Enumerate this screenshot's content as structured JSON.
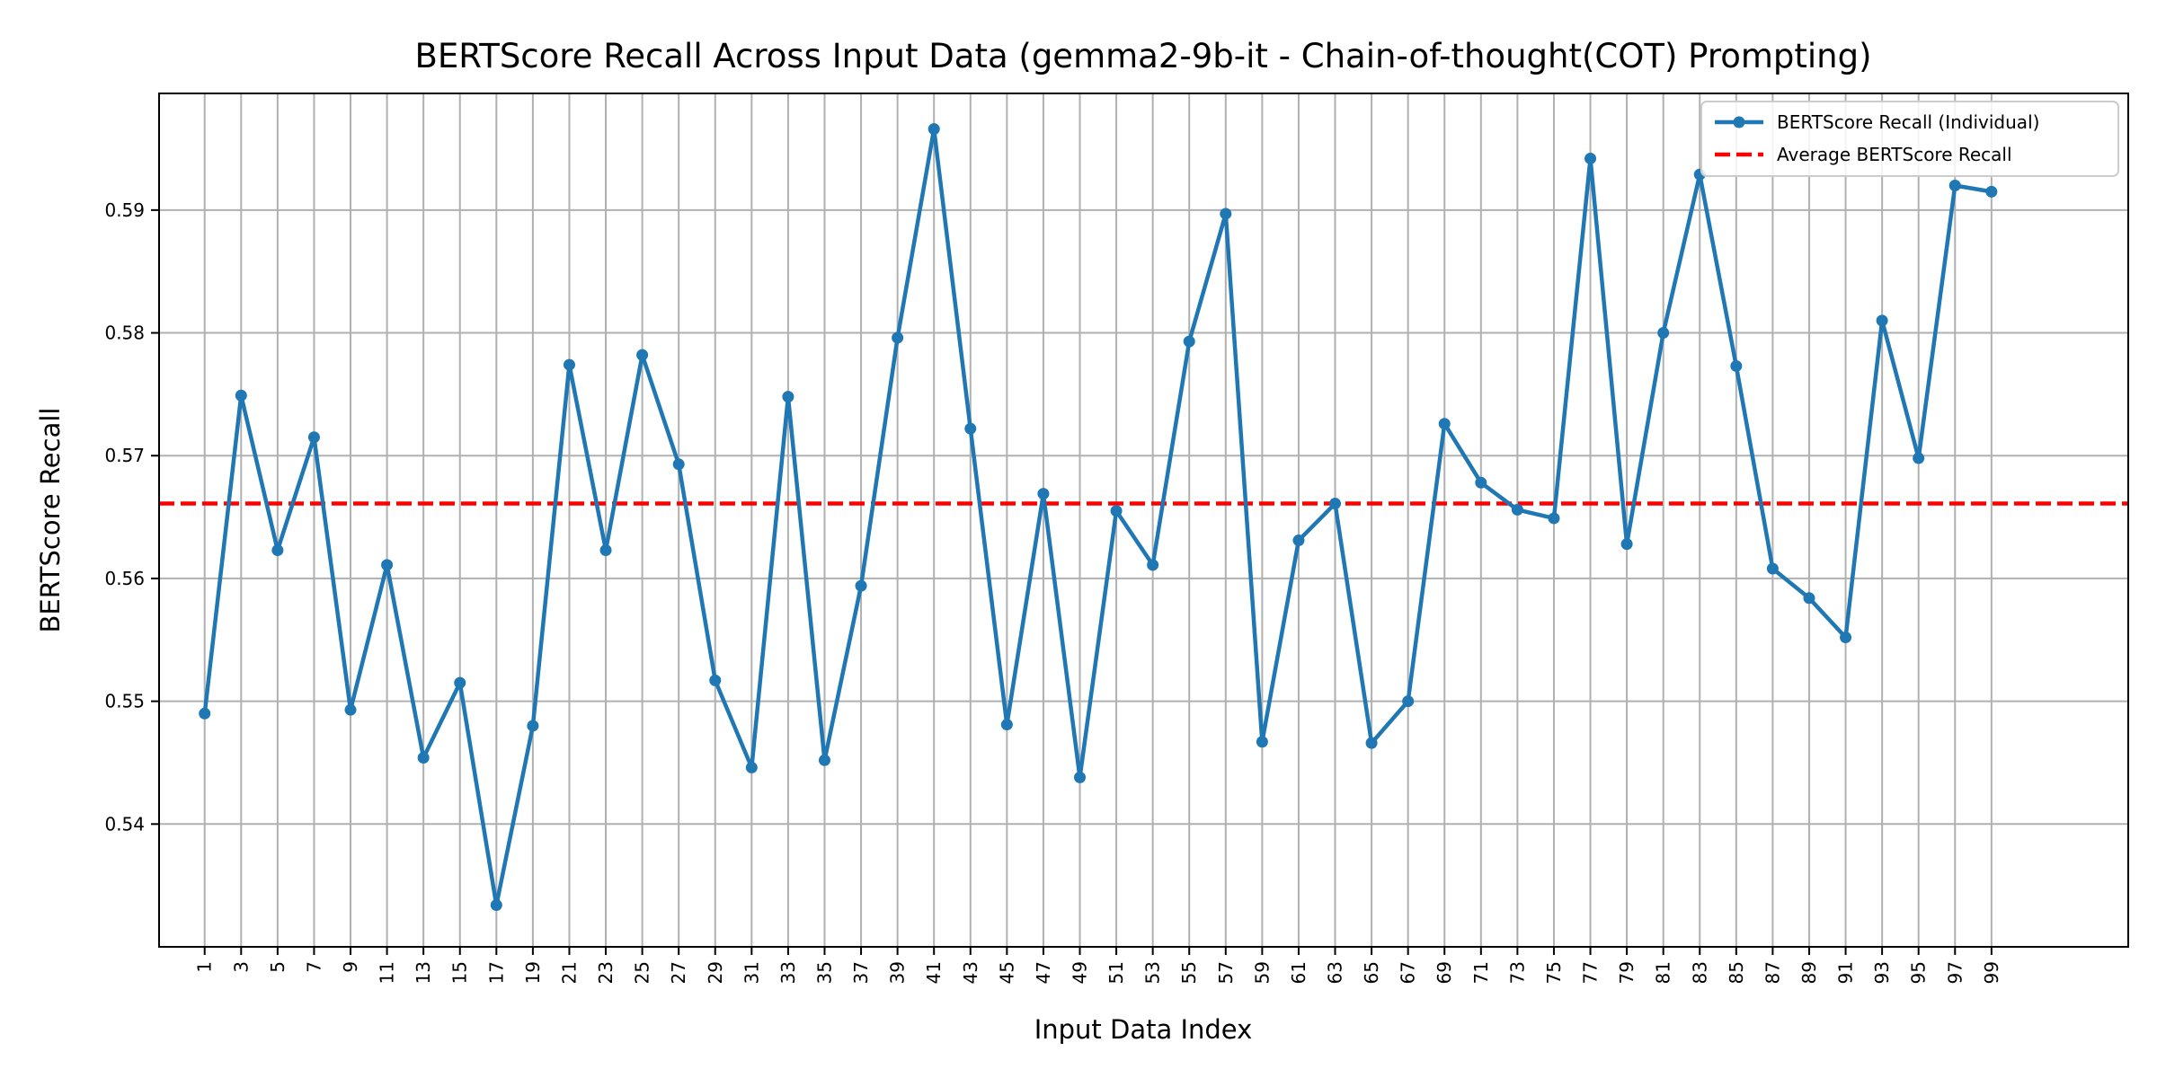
{
  "chart_data": {
    "type": "line",
    "title": "BERTScore Recall Across Input Data (gemma2-9b-it - Chain-of-thought(COT) Prompting)",
    "xlabel": "Input Data Index",
    "ylabel": "BERTScore Recall",
    "xlim": [
      -1.5,
      106.5
    ],
    "ylim": [
      0.53,
      0.5995
    ],
    "grid": true,
    "legend_position": "top-right",
    "x": [
      1,
      3,
      5,
      7,
      9,
      11,
      13,
      15,
      17,
      19,
      21,
      23,
      25,
      27,
      29,
      31,
      33,
      35,
      37,
      39,
      41,
      43,
      45,
      47,
      49,
      51,
      53,
      55,
      57,
      59,
      61,
      63,
      65,
      67,
      69,
      71,
      73,
      75,
      77,
      79,
      81,
      83,
      85,
      87,
      89,
      91,
      93,
      95,
      97,
      99
    ],
    "x_tick_labels": [
      "1",
      "3",
      "5",
      "7",
      "9",
      "11",
      "13",
      "15",
      "17",
      "19",
      "21",
      "23",
      "25",
      "27",
      "29",
      "31",
      "33",
      "35",
      "37",
      "39",
      "41",
      "43",
      "45",
      "47",
      "49",
      "51",
      "53",
      "55",
      "57",
      "59",
      "61",
      "63",
      "65",
      "67",
      "69",
      "71",
      "73",
      "75",
      "77",
      "79",
      "81",
      "83",
      "85",
      "87",
      "89",
      "91",
      "93",
      "95",
      "97",
      "99"
    ],
    "y_ticks": [
      0.54,
      0.55,
      0.56,
      0.57,
      0.58,
      0.59
    ],
    "y_tick_labels": [
      "0.54",
      "0.55",
      "0.56",
      "0.57",
      "0.58",
      "0.59"
    ],
    "series": [
      {
        "name": "BERTScore Recall (Individual)",
        "color": "#1f77b4",
        "marker": "circle",
        "values": [
          0.549,
          0.5749,
          0.5623,
          0.5715,
          0.5493,
          0.5611,
          0.5454,
          0.5515,
          0.5334,
          0.548,
          0.5774,
          0.5623,
          0.5782,
          0.5693,
          0.5517,
          0.5446,
          0.5748,
          0.5452,
          0.5594,
          0.5796,
          0.5966,
          0.5722,
          0.5481,
          0.5669,
          0.5438,
          0.5655,
          0.5611,
          0.5793,
          0.5897,
          0.5467,
          0.5631,
          0.5661,
          0.5466,
          0.55,
          0.5726,
          0.5678,
          0.5656,
          0.5649,
          0.5942,
          0.5628,
          0.58,
          0.5929,
          0.5773,
          0.5608,
          0.5584,
          0.5552,
          0.581,
          0.5698,
          0.592,
          0.5915
        ]
      }
    ],
    "average": {
      "name": "Average BERTScore Recall",
      "value": 0.5661,
      "color": "#ff0000",
      "style": "dashed"
    }
  }
}
